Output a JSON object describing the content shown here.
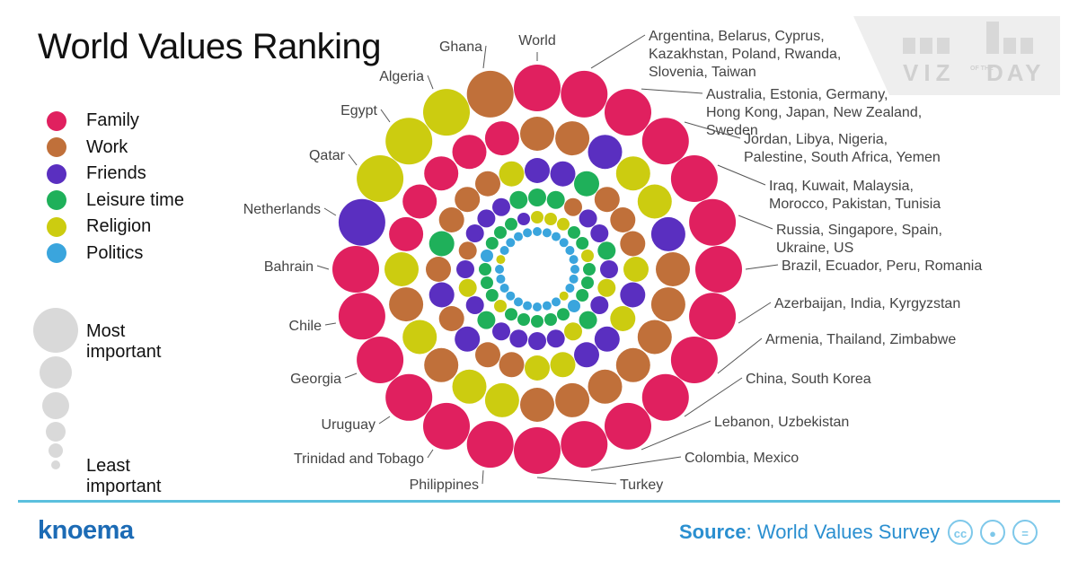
{
  "title": "World Values Ranking",
  "legend": [
    {
      "label": "Family",
      "color": "#e0205f"
    },
    {
      "label": "Work",
      "color": "#c0703a"
    },
    {
      "label": "Friends",
      "color": "#5a2fc0"
    },
    {
      "label": "Leisure time",
      "color": "#1fb05a"
    },
    {
      "label": "Religion",
      "color": "#cccc10"
    },
    {
      "label": "Politics",
      "color": "#3aa5dd"
    }
  ],
  "size_legend": {
    "most": "Most important",
    "least": "Least important"
  },
  "brand": "knoema",
  "source": {
    "label": "Source",
    "sep": ": ",
    "text": "World Values Survey"
  },
  "cc_icons": [
    "cc-icon",
    "by-icon",
    "nd-icon"
  ],
  "badge": {
    "line1": "VIZ",
    "small": "OF THE",
    "line2": "DAY"
  },
  "chart_data": {
    "type": "radial-bubble",
    "title": "World Values Ranking",
    "rank_order_note": "Rings from outer (rank 1, most important) to inner (rank 6, least important)",
    "groups": [
      {
        "label": "World",
        "ranks": [
          "Family",
          "Work",
          "Friends",
          "Leisure time",
          "Religion",
          "Politics"
        ]
      },
      {
        "label": "Argentina, Belarus, Cyprus, Kazakhstan, Poland, Rwanda, Slovenia, Taiwan",
        "ranks": [
          "Family",
          "Work",
          "Friends",
          "Leisure time",
          "Religion",
          "Politics"
        ]
      },
      {
        "label": "Australia, Estonia, Germany, Hong Kong, Japan, New Zealand, Sweden",
        "ranks": [
          "Family",
          "Friends",
          "Leisure time",
          "Work",
          "Religion",
          "Politics"
        ]
      },
      {
        "label": "Jordan, Libya, Nigeria, Palestine, South Africa, Yemen",
        "ranks": [
          "Family",
          "Religion",
          "Work",
          "Friends",
          "Leisure time",
          "Politics"
        ]
      },
      {
        "label": "Iraq, Kuwait, Malaysia, Morocco, Pakistan, Tunisia",
        "ranks": [
          "Family",
          "Religion",
          "Work",
          "Friends",
          "Leisure time",
          "Politics"
        ]
      },
      {
        "label": "Russia, Singapore, Spain, Ukraine, US",
        "ranks": [
          "Family",
          "Friends",
          "Work",
          "Leisure time",
          "Religion",
          "Politics"
        ]
      },
      {
        "label": "Brazil, Ecuador, Peru, Romania",
        "ranks": [
          "Family",
          "Work",
          "Religion",
          "Friends",
          "Leisure time",
          "Politics"
        ]
      },
      {
        "label": "Azerbaijan, India, Kyrgyzstan",
        "ranks": [
          "Family",
          "Work",
          "Friends",
          "Religion",
          "Leisure time",
          "Politics"
        ]
      },
      {
        "label": "Armenia, Thailand, Zimbabwe",
        "ranks": [
          "Family",
          "Work",
          "Religion",
          "Friends",
          "Leisure time",
          "Politics"
        ]
      },
      {
        "label": "China, South Korea",
        "ranks": [
          "Family",
          "Work",
          "Friends",
          "Leisure time",
          "Politics",
          "Religion"
        ]
      },
      {
        "label": "Lebanon, Uzbekistan",
        "ranks": [
          "Family",
          "Work",
          "Friends",
          "Religion",
          "Leisure time",
          "Politics"
        ]
      },
      {
        "label": "Colombia, Mexico",
        "ranks": [
          "Family",
          "Work",
          "Religion",
          "Friends",
          "Leisure time",
          "Politics"
        ]
      },
      {
        "label": "Turkey",
        "ranks": [
          "Family",
          "Work",
          "Religion",
          "Friends",
          "Leisure time",
          "Politics"
        ]
      },
      {
        "label": "Philippines",
        "ranks": [
          "Family",
          "Religion",
          "Work",
          "Friends",
          "Leisure time",
          "Politics"
        ]
      },
      {
        "label": "Trinidad and Tobago",
        "ranks": [
          "Family",
          "Religion",
          "Work",
          "Friends",
          "Leisure time",
          "Politics"
        ]
      },
      {
        "label": "Uruguay",
        "ranks": [
          "Family",
          "Work",
          "Friends",
          "Leisure time",
          "Religion",
          "Politics"
        ]
      },
      {
        "label": "Georgia",
        "ranks": [
          "Family",
          "Religion",
          "Work",
          "Friends",
          "Leisure time",
          "Politics"
        ]
      },
      {
        "label": "Chile",
        "ranks": [
          "Family",
          "Work",
          "Friends",
          "Religion",
          "Leisure time",
          "Politics"
        ]
      },
      {
        "label": "Bahrain",
        "ranks": [
          "Family",
          "Religion",
          "Work",
          "Friends",
          "Leisure time",
          "Politics"
        ]
      },
      {
        "label": "Netherlands",
        "ranks": [
          "Friends",
          "Family",
          "Leisure time",
          "Work",
          "Politics",
          "Religion"
        ]
      },
      {
        "label": "Qatar",
        "ranks": [
          "Religion",
          "Family",
          "Work",
          "Friends",
          "Leisure time",
          "Politics"
        ]
      },
      {
        "label": "Egypt",
        "ranks": [
          "Religion",
          "Family",
          "Work",
          "Friends",
          "Leisure time",
          "Politics"
        ]
      },
      {
        "label": "Algeria",
        "ranks": [
          "Religion",
          "Family",
          "Work",
          "Friends",
          "Leisure time",
          "Politics"
        ]
      },
      {
        "label": "Ghana",
        "ranks": [
          "Work",
          "Family",
          "Religion",
          "Leisure time",
          "Friends",
          "Politics"
        ]
      }
    ]
  }
}
